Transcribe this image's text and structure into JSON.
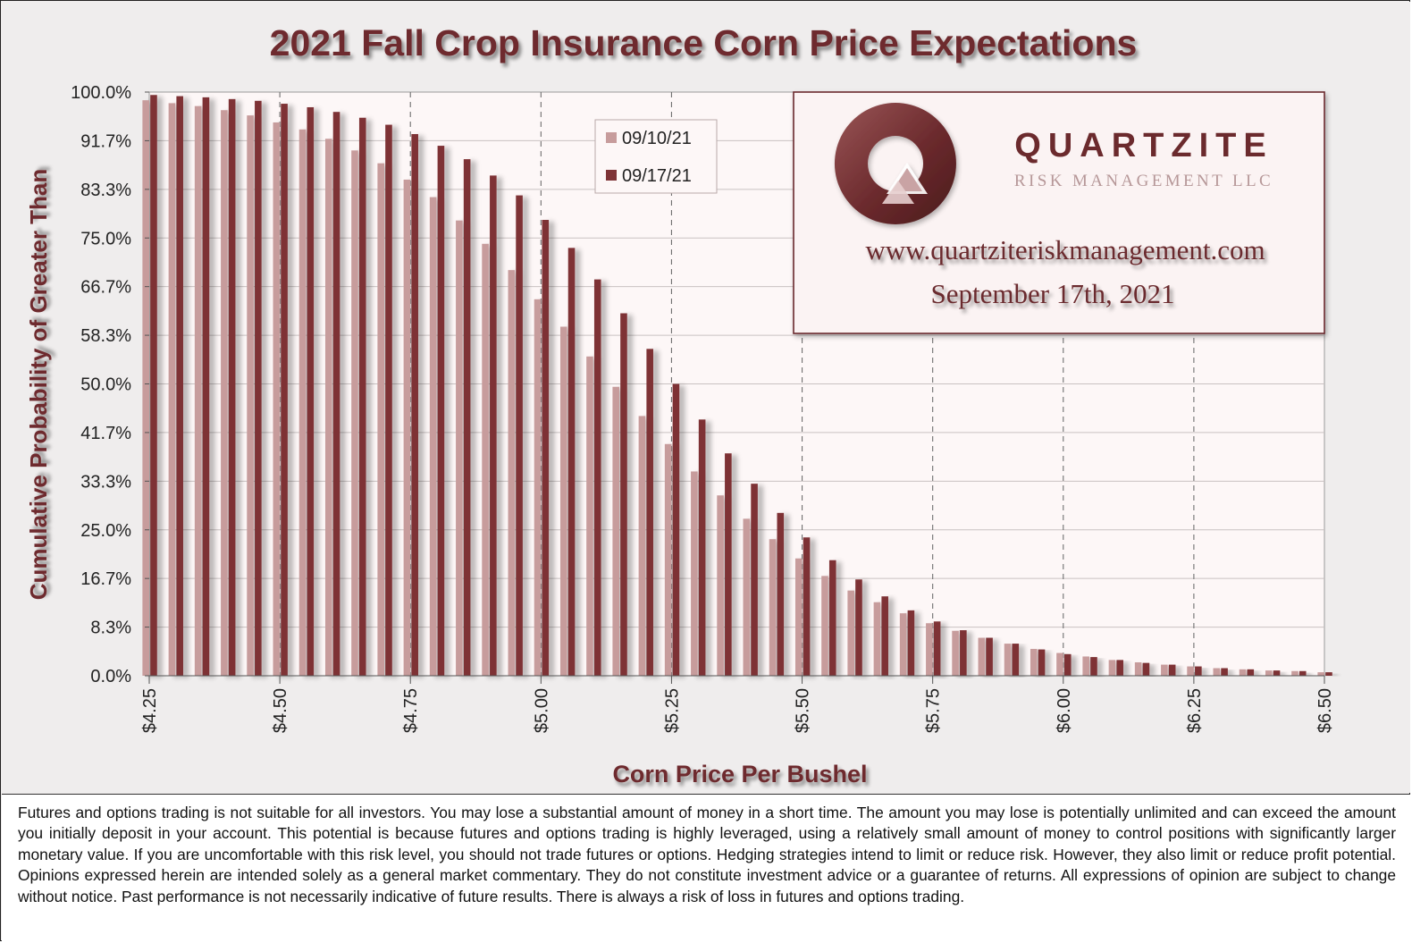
{
  "chart_data": {
    "type": "bar",
    "title": "2021 Fall Crop Insurance Corn Price Expectations",
    "xlabel": "Corn Price Per Bushel",
    "ylabel": "Cumulative Probability of Greater Than",
    "ylim": [
      0,
      100
    ],
    "y_ticks": [
      "0.0%",
      "8.3%",
      "16.7%",
      "25.0%",
      "33.3%",
      "41.7%",
      "50.0%",
      "58.3%",
      "66.7%",
      "75.0%",
      "83.3%",
      "91.7%",
      "100.0%"
    ],
    "x_ticks": [
      "$4.25",
      "$4.50",
      "$4.75",
      "$5.00",
      "$5.25",
      "$5.50",
      "$5.75",
      "$6.00",
      "$6.25",
      "$6.50"
    ],
    "x_range": [
      4.25,
      6.5
    ],
    "bar_step": 0.05,
    "grid": true,
    "legend_position": "top-center",
    "series": [
      {
        "name": "09/10/21",
        "color": "#c79c9c",
        "values": [
          98.6,
          98.1,
          97.6,
          96.9,
          96.0,
          94.8,
          93.6,
          92.0,
          90.0,
          87.8,
          85.0,
          82.0,
          78.0,
          74.0,
          69.5,
          64.5,
          59.8,
          54.7,
          49.5,
          44.5,
          39.7,
          35.0,
          30.9,
          26.9,
          23.4,
          20.1,
          17.1,
          14.6,
          12.6,
          10.7,
          9.0,
          7.7,
          6.5,
          5.5,
          4.6,
          3.9,
          3.3,
          2.7,
          2.3,
          1.9,
          1.6,
          1.3,
          1.1,
          0.9,
          0.8,
          0.6
        ]
      },
      {
        "name": "09/17/21",
        "color": "#7e3336",
        "values": [
          99.5,
          99.3,
          99.1,
          98.8,
          98.5,
          98.0,
          97.4,
          96.6,
          95.6,
          94.4,
          92.8,
          90.8,
          88.5,
          85.7,
          82.3,
          78.1,
          73.3,
          67.9,
          62.1,
          56.0,
          50.0,
          43.9,
          38.1,
          32.9,
          27.9,
          23.7,
          19.8,
          16.5,
          13.6,
          11.2,
          9.3,
          7.8,
          6.5,
          5.5,
          4.5,
          3.7,
          3.2,
          2.7,
          2.2,
          1.9,
          1.6,
          1.3,
          1.1,
          0.9,
          0.8,
          0.6
        ]
      }
    ]
  },
  "overlay": {
    "logo_name": "QUARTZITE",
    "logo_sub": "RISK MANAGEMENT LLC",
    "website": "www.quartziteriskmanagement.com",
    "date": "September 17th, 2021",
    "colors": {
      "brand": "#6b2a2d",
      "box_bg": "#fbf3f3"
    }
  },
  "disclaimer": "Futures and options trading is not suitable for all investors. You may lose a substantial amount of money in a short time. The amount you may lose is potentially unlimited and can exceed the amount you initially deposit in your account. This potential is because futures and options trading is highly leveraged, using a relatively small amount of money to control positions with significantly larger monetary value. If you are uncomfortable with this risk level, you should not trade futures or options. Hedging strategies intend to limit or reduce risk. However, they also limit or reduce profit potential. Opinions expressed herein are intended solely as a general market commentary. They do not constitute investment advice or a guarantee of returns. All expressions of opinion are subject to change without notice. Past performance is not necessarily indicative of future results. There is always a risk of loss in futures and options trading."
}
